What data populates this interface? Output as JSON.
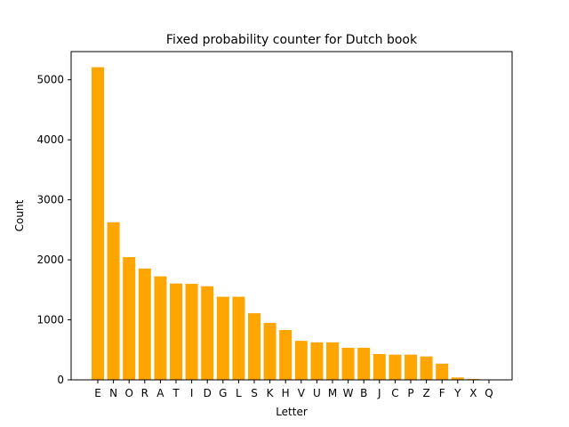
{
  "chart_data": {
    "type": "bar",
    "title": "Fixed probability counter for Dutch book",
    "xlabel": "Letter",
    "ylabel": "Count",
    "categories": [
      "E",
      "N",
      "O",
      "R",
      "A",
      "T",
      "I",
      "D",
      "G",
      "L",
      "S",
      "K",
      "H",
      "V",
      "U",
      "M",
      "W",
      "B",
      "J",
      "C",
      "P",
      "Z",
      "F",
      "Y",
      "X",
      "Q"
    ],
    "values": [
      5210,
      2625,
      2045,
      1855,
      1725,
      1605,
      1600,
      1560,
      1385,
      1385,
      1110,
      950,
      830,
      650,
      625,
      625,
      535,
      535,
      430,
      420,
      420,
      390,
      270,
      40,
      15,
      5
    ],
    "ylim": [
      0,
      5470
    ],
    "yticks": [
      0,
      1000,
      2000,
      3000,
      4000,
      5000
    ],
    "bar_color": "#ffa500",
    "grid": false
  }
}
